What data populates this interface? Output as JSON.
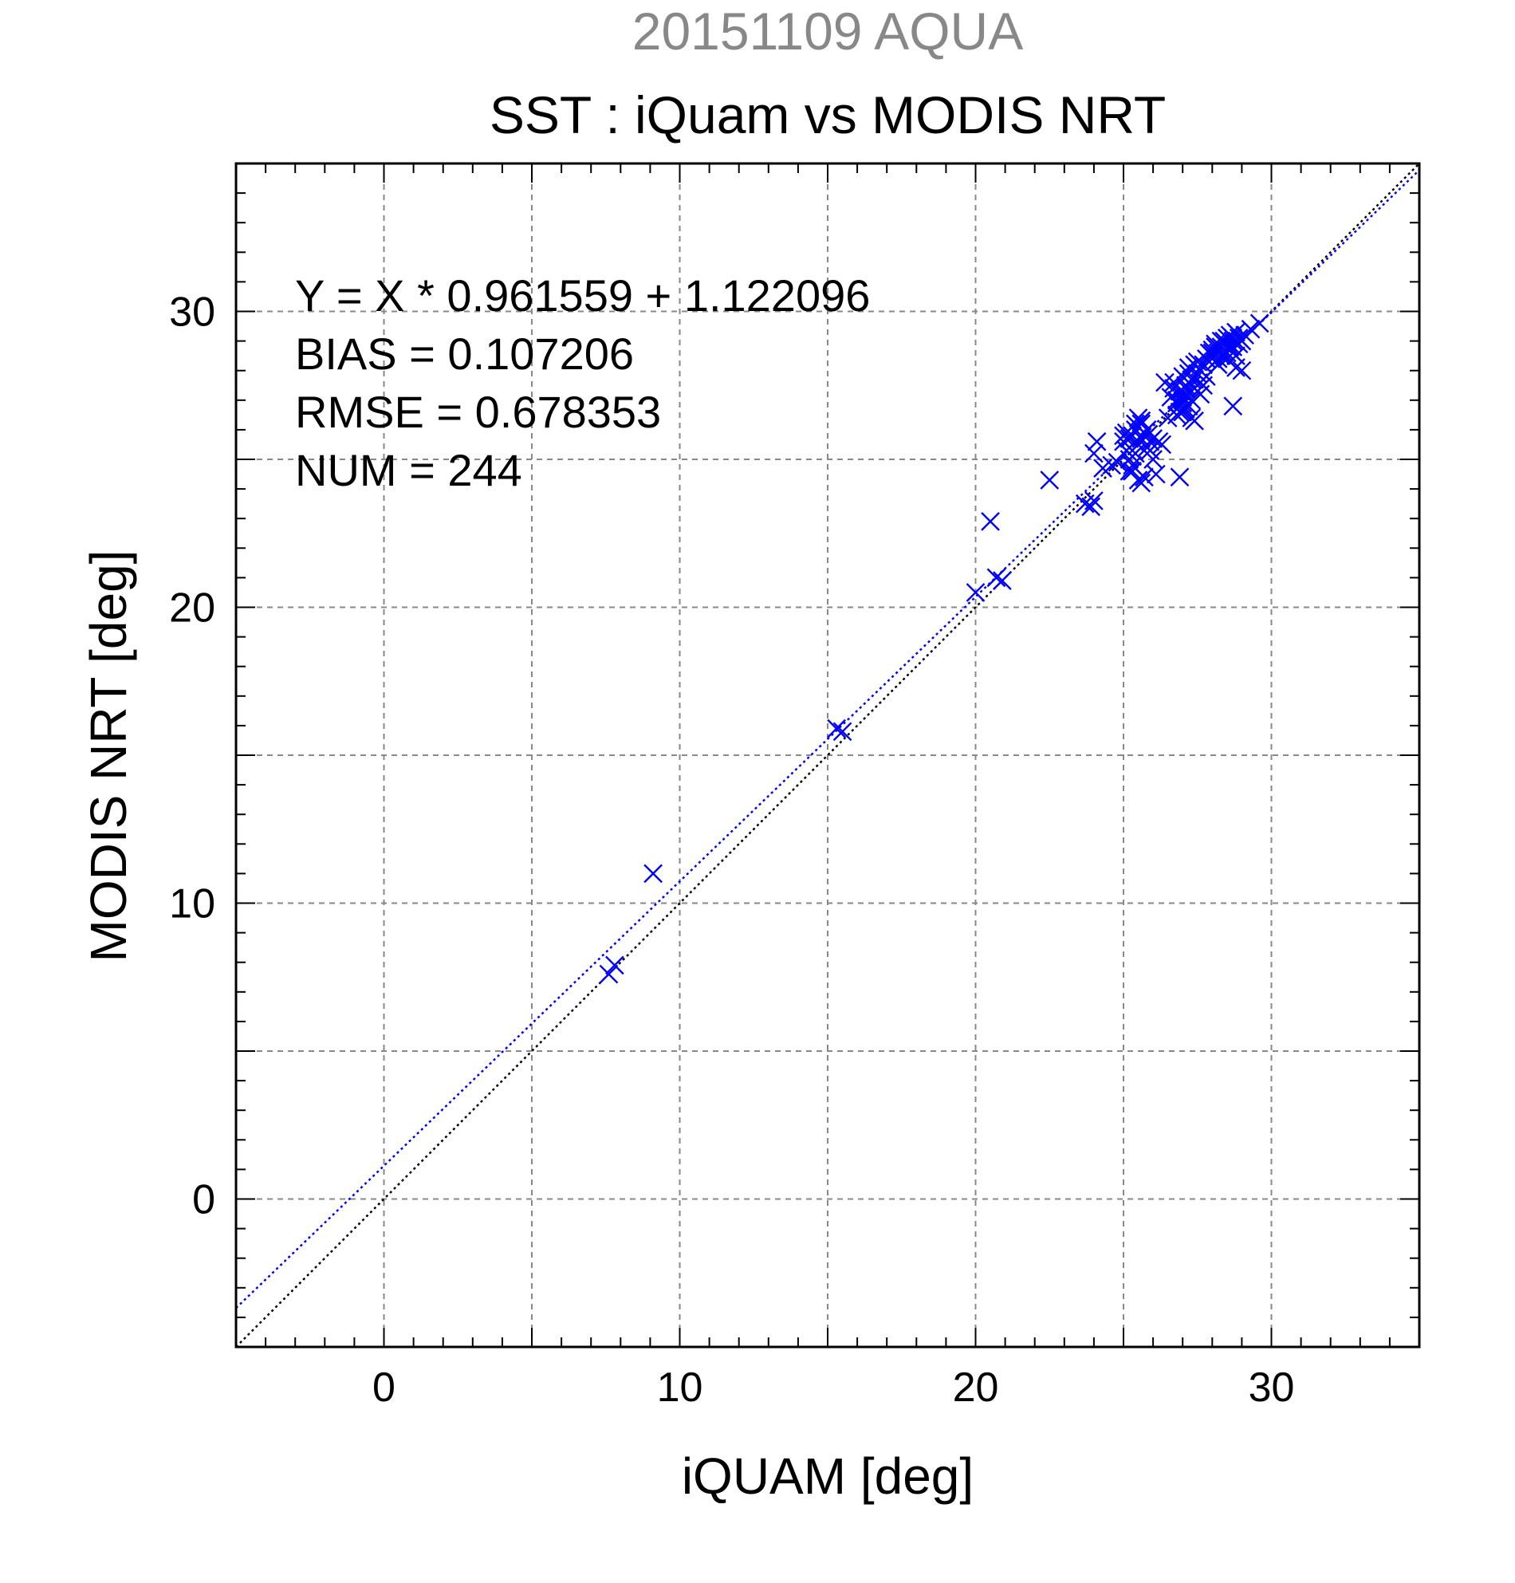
{
  "chart_data": {
    "type": "scatter",
    "title": "SST : iQuam vs MODIS NRT",
    "subtitle": "20151109 AQUA",
    "xlabel": "iQUAM [deg]",
    "ylabel": "MODIS NRT [deg]",
    "xlim": [
      -5,
      35
    ],
    "ylim": [
      -5,
      35
    ],
    "xticks": [
      0,
      10,
      20,
      30
    ],
    "yticks": [
      0,
      10,
      20,
      30
    ],
    "grid": true,
    "colors": {
      "points": "#0000ff",
      "fit_line": "#0000ff",
      "identity_line": "#000000",
      "subtitle": "#888888",
      "grid": "#888888"
    },
    "annotations": [
      "Y = X * 0.961559 + 1.122096",
      "BIAS = 0.107206",
      "RMSE = 0.678353",
      "NUM = 244"
    ],
    "fit": {
      "slope": 0.961559,
      "intercept": 1.122096
    },
    "series": [
      {
        "marker": "x",
        "x": [
          7.6,
          7.8,
          9.1,
          15.3,
          15.5,
          20.0,
          20.5,
          20.7,
          20.9,
          22.5,
          23.7,
          23.9,
          24.0,
          24.1,
          24.3,
          24.6,
          24.8,
          25.0,
          25.1,
          25.2,
          25.2,
          25.3,
          25.3,
          25.4,
          25.4,
          25.5,
          25.5,
          25.5,
          25.6,
          25.6,
          25.6,
          25.7,
          25.7,
          25.8,
          25.8,
          25.9,
          26.0,
          26.1,
          25.1,
          25.3,
          25.6,
          25.9,
          26.2,
          25.5,
          25.8,
          26.3,
          25.2,
          25.4,
          26.5,
          26.6,
          26.7,
          26.8,
          26.8,
          26.9,
          26.9,
          27.0,
          27.0,
          27.0,
          27.1,
          27.1,
          27.1,
          27.2,
          27.2,
          27.2,
          27.3,
          27.3,
          27.3,
          27.4,
          27.4,
          27.5,
          27.5,
          27.6,
          27.6,
          27.7,
          27.7,
          27.8,
          26.7,
          27.0,
          27.3,
          27.6,
          26.9,
          27.2,
          27.5,
          27.8,
          26.8,
          27.1,
          27.4,
          26.9,
          28.0,
          28.0,
          28.1,
          28.1,
          28.2,
          28.2,
          28.3,
          28.3,
          28.4,
          28.4,
          28.5,
          28.5,
          28.5,
          28.6,
          28.6,
          28.7,
          28.7,
          28.8,
          28.8,
          28.9,
          29.0,
          29.1,
          29.3,
          29.6,
          28.1,
          28.3,
          28.5,
          28.7,
          28.9,
          28.2,
          28.4,
          28.6,
          28.8,
          28.0,
          25.0,
          25.6,
          26.0,
          24.0,
          25.3,
          26.4,
          27.0,
          27.9,
          28.7,
          29.0
        ],
        "y": [
          7.6,
          7.9,
          11.0,
          15.9,
          15.8,
          20.5,
          22.9,
          21.0,
          20.9,
          24.3,
          23.5,
          23.4,
          23.6,
          25.6,
          24.7,
          24.8,
          24.9,
          25.6,
          25.3,
          25.0,
          24.6,
          25.8,
          25.1,
          26.0,
          25.2,
          24.3,
          25.5,
          26.1,
          24.2,
          25.7,
          26.2,
          24.4,
          25.9,
          26.0,
          25.4,
          25.6,
          25.7,
          24.5,
          25.9,
          24.8,
          26.3,
          25.3,
          25.6,
          26.4,
          25.8,
          25.5,
          25.7,
          26.2,
          26.4,
          27.1,
          27.6,
          26.9,
          26.5,
          27.3,
          26.8,
          27.0,
          26.6,
          27.8,
          27.2,
          26.7,
          27.4,
          26.8,
          27.6,
          28.1,
          27.0,
          27.5,
          26.4,
          27.7,
          28.2,
          27.9,
          27.3,
          28.0,
          27.6,
          28.2,
          27.5,
          28.4,
          27.4,
          26.9,
          27.7,
          27.2,
          26.6,
          27.9,
          28.3,
          27.8,
          27.0,
          27.5,
          26.3,
          24.4,
          28.5,
          28.7,
          28.3,
          28.9,
          28.6,
          28.4,
          28.8,
          28.5,
          29.0,
          28.6,
          28.9,
          28.4,
          29.1,
          28.7,
          29.2,
          28.8,
          29.0,
          28.5,
          29.3,
          29.1,
          29.0,
          29.2,
          29.4,
          29.6,
          28.8,
          29.0,
          28.6,
          29.1,
          28.9,
          28.2,
          28.5,
          28.8,
          28.1,
          28.6,
          25.8,
          26.3,
          25.0,
          25.2,
          24.6,
          27.6,
          27.1,
          28.6,
          26.8,
          28.0
        ]
      },
      {
        "type": "line",
        "style": "dotted",
        "role": "identity",
        "x": [
          -5,
          35
        ],
        "y": [
          -5,
          35
        ]
      },
      {
        "type": "line",
        "style": "dotted",
        "role": "fit",
        "x": [
          -5,
          35
        ],
        "y": [
          -3.685699,
          34.776661
        ]
      }
    ]
  }
}
